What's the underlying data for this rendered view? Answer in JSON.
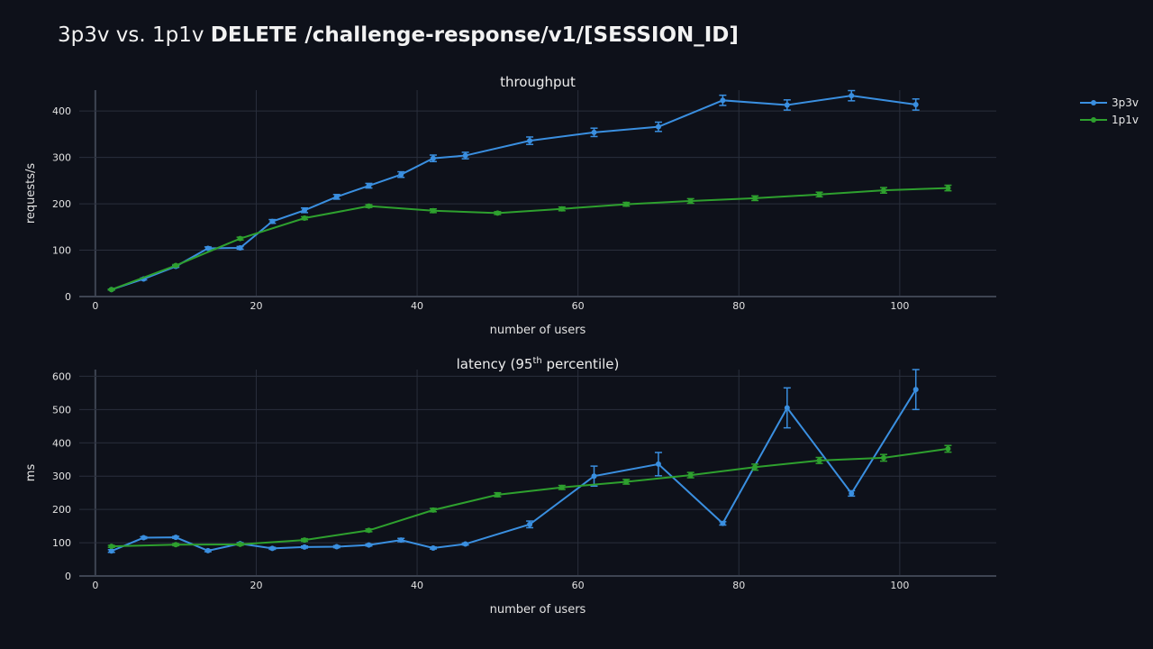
{
  "title": {
    "normal": "3p3v vs. 1p1v",
    "bold": "DELETE /challenge-response/v1/[SESSION_ID]"
  },
  "colors": {
    "background": "#0e111a",
    "grid": "#2a2f3c",
    "series_3p3v": "#3a8fe0",
    "series_1p1v": "#2ea02e"
  },
  "legend": {
    "placement": "top-right",
    "items": [
      "3p3v",
      "1p1v"
    ]
  },
  "chart_data": [
    {
      "type": "line",
      "title": "throughput",
      "xlabel": "number of users",
      "ylabel": "requests/s",
      "xlim": [
        -2,
        112
      ],
      "ylim": [
        0,
        445
      ],
      "xticks": [
        0,
        20,
        40,
        60,
        80,
        100
      ],
      "yticks": [
        0,
        100,
        200,
        300,
        400
      ],
      "grid": true,
      "series": [
        {
          "name": "3p3v",
          "color": "#3a8fe0",
          "x": [
            2,
            6,
            10,
            14,
            18,
            22,
            26,
            30,
            34,
            38,
            42,
            46,
            54,
            62,
            70,
            78,
            86,
            94,
            102
          ],
          "y": [
            15,
            38,
            65,
            104,
            105,
            162,
            186,
            215,
            239,
            263,
            298,
            304,
            336,
            354,
            366,
            423,
            413,
            433,
            414
          ],
          "error": [
            1,
            2,
            2,
            3,
            3,
            4,
            5,
            5,
            5,
            6,
            7,
            7,
            8,
            9,
            10,
            11,
            11,
            11,
            12
          ]
        },
        {
          "name": "1p1v",
          "color": "#2ea02e",
          "x": [
            2,
            10,
            18,
            26,
            34,
            42,
            50,
            58,
            66,
            74,
            82,
            90,
            98,
            106
          ],
          "y": [
            15,
            67,
            125,
            169,
            195,
            185,
            180,
            189,
            199,
            206,
            212,
            220,
            229,
            234
          ],
          "error": [
            1,
            2,
            3,
            3,
            3,
            4,
            3,
            4,
            4,
            5,
            5,
            5,
            6,
            6
          ]
        }
      ]
    },
    {
      "type": "line",
      "title": {
        "pre": "latency (95",
        "sup": "th",
        "post": " percentile)"
      },
      "xlabel": "number of users",
      "ylabel": "ms",
      "xlim": [
        -2,
        112
      ],
      "ylim": [
        0,
        620
      ],
      "xticks": [
        0,
        20,
        40,
        60,
        80,
        100
      ],
      "yticks": [
        0,
        100,
        200,
        300,
        400,
        500,
        600
      ],
      "grid": true,
      "series": [
        {
          "name": "3p3v",
          "color": "#3a8fe0",
          "x": [
            2,
            6,
            10,
            14,
            18,
            22,
            26,
            30,
            34,
            38,
            42,
            46,
            54,
            62,
            70,
            78,
            86,
            94,
            102
          ],
          "y": [
            75,
            115,
            116,
            76,
            97,
            83,
            87,
            88,
            93,
            108,
            84,
            96,
            155,
            300,
            336,
            158,
            505,
            248,
            560
          ],
          "error": [
            4,
            3,
            3,
            3,
            3,
            3,
            3,
            3,
            3,
            5,
            3,
            3,
            10,
            30,
            35,
            5,
            60,
            8,
            60
          ]
        },
        {
          "name": "1p1v",
          "color": "#2ea02e",
          "x": [
            2,
            10,
            18,
            26,
            34,
            42,
            50,
            58,
            66,
            74,
            82,
            90,
            98,
            106
          ],
          "y": [
            89,
            94,
            95,
            108,
            137,
            198,
            244,
            266,
            283,
            303,
            327,
            347,
            355,
            382
          ],
          "error": [
            3,
            3,
            3,
            4,
            4,
            5,
            6,
            6,
            7,
            8,
            9,
            9,
            10,
            10
          ]
        }
      ]
    }
  ]
}
